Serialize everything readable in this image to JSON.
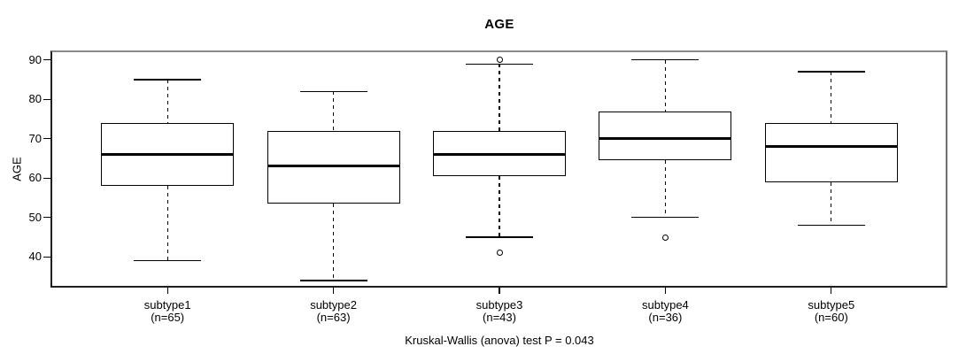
{
  "title": "AGE",
  "y_axis": {
    "label": "AGE",
    "ticks": [
      90,
      80,
      70,
      60,
      50,
      40
    ]
  },
  "caption": "Kruskal-Wallis (anova) test P = 0.043",
  "colors": {
    "foreground": "#000000",
    "frame_gray": "#808080",
    "background": "#ffffff"
  },
  "chart_data": {
    "type": "boxplot",
    "title": "AGE",
    "xlabel": "",
    "ylabel": "AGE",
    "ylim": [
      32,
      92
    ],
    "yticks": [
      40,
      50,
      60,
      70,
      80,
      90
    ],
    "grid": false,
    "annotation": "Kruskal-Wallis (anova) test P = 0.043",
    "groups": [
      {
        "label": "subtype1",
        "sublabel": "(n=65)",
        "n": 65,
        "whisker_low": 39,
        "q1": 58,
        "median": 66,
        "q3": 74,
        "whisker_high": 85,
        "outliers": []
      },
      {
        "label": "subtype2",
        "sublabel": "(n=63)",
        "n": 63,
        "whisker_low": 34,
        "q1": 53.5,
        "median": 63,
        "q3": 72,
        "whisker_high": 82,
        "outliers": []
      },
      {
        "label": "subtype3",
        "sublabel": "(n=43)",
        "n": 43,
        "whisker_low": 45,
        "q1": 60.5,
        "median": 66,
        "q3": 72,
        "whisker_high": 89,
        "outliers": [
          90,
          41
        ]
      },
      {
        "label": "subtype4",
        "sublabel": "(n=36)",
        "n": 36,
        "whisker_low": 50,
        "q1": 64.5,
        "median": 70,
        "q3": 77,
        "whisker_high": 90,
        "outliers": [
          45
        ]
      },
      {
        "label": "subtype5",
        "sublabel": "(n=60)",
        "n": 60,
        "whisker_low": 48,
        "q1": 59,
        "median": 68,
        "q3": 74,
        "whisker_high": 87,
        "outliers": []
      }
    ]
  }
}
